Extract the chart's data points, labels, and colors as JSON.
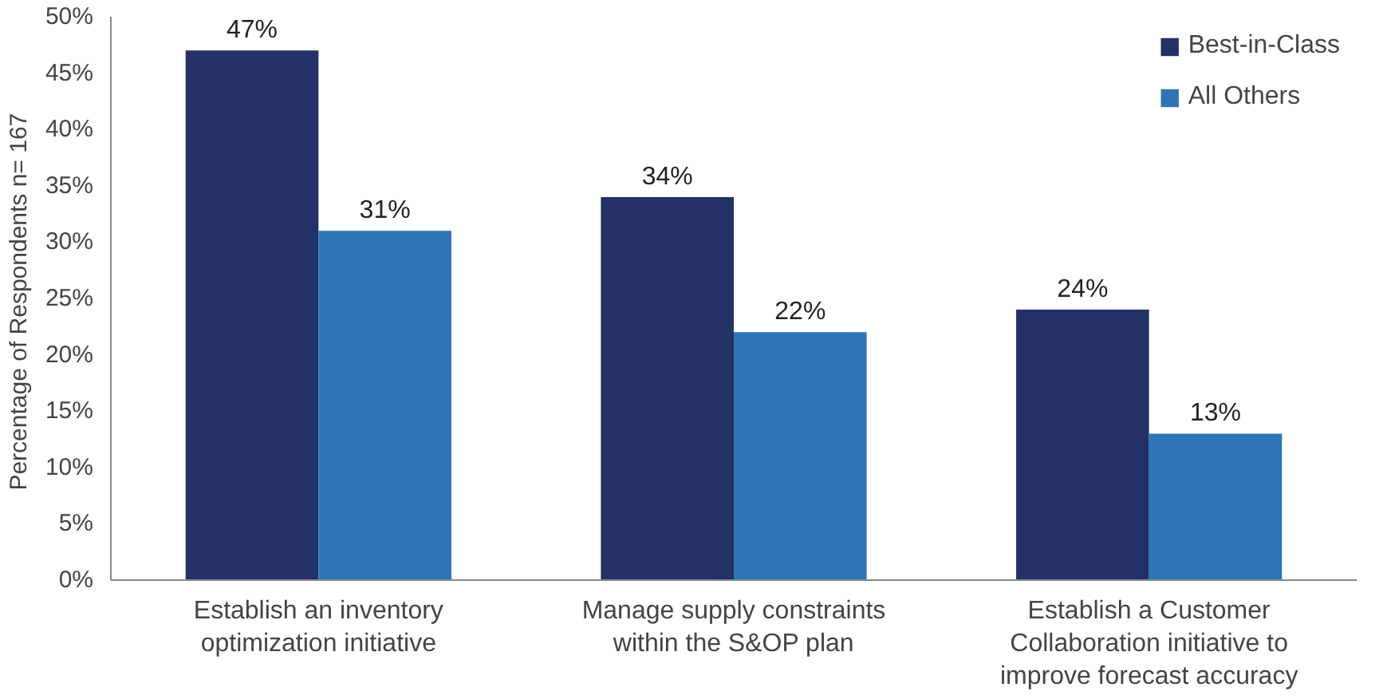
{
  "chart_data": {
    "type": "bar",
    "ylabel": "Percentage of Respondents  n= 167",
    "categories": [
      "Establish an inventory optimization initiative",
      "Manage supply constraints within the S&OP plan",
      "Establish a Customer Collaboration initiative to improve forecast accuracy"
    ],
    "series": [
      {
        "name": "Best-in-Class",
        "color": "#233166",
        "values": [
          47,
          34,
          24
        ],
        "value_labels": [
          "47%",
          "34%",
          "24%"
        ]
      },
      {
        "name": "All Others",
        "color": "#2e75b6",
        "values": [
          31,
          22,
          13
        ],
        "value_labels": [
          "31%",
          "22%",
          "13%"
        ]
      }
    ],
    "ylim": [
      0,
      50
    ],
    "yticks": [
      {
        "value": 0,
        "label": "0%"
      },
      {
        "value": 5,
        "label": "5%"
      },
      {
        "value": 10,
        "label": "10%"
      },
      {
        "value": 15,
        "label": "15%"
      },
      {
        "value": 20,
        "label": "20%"
      },
      {
        "value": 25,
        "label": "25%"
      },
      {
        "value": 30,
        "label": "30%"
      },
      {
        "value": 35,
        "label": "35%"
      },
      {
        "value": 40,
        "label": "40%"
      },
      {
        "value": 45,
        "label": "45%"
      },
      {
        "value": 50,
        "label": "50%"
      }
    ],
    "grid": false,
    "legend": "top right"
  }
}
